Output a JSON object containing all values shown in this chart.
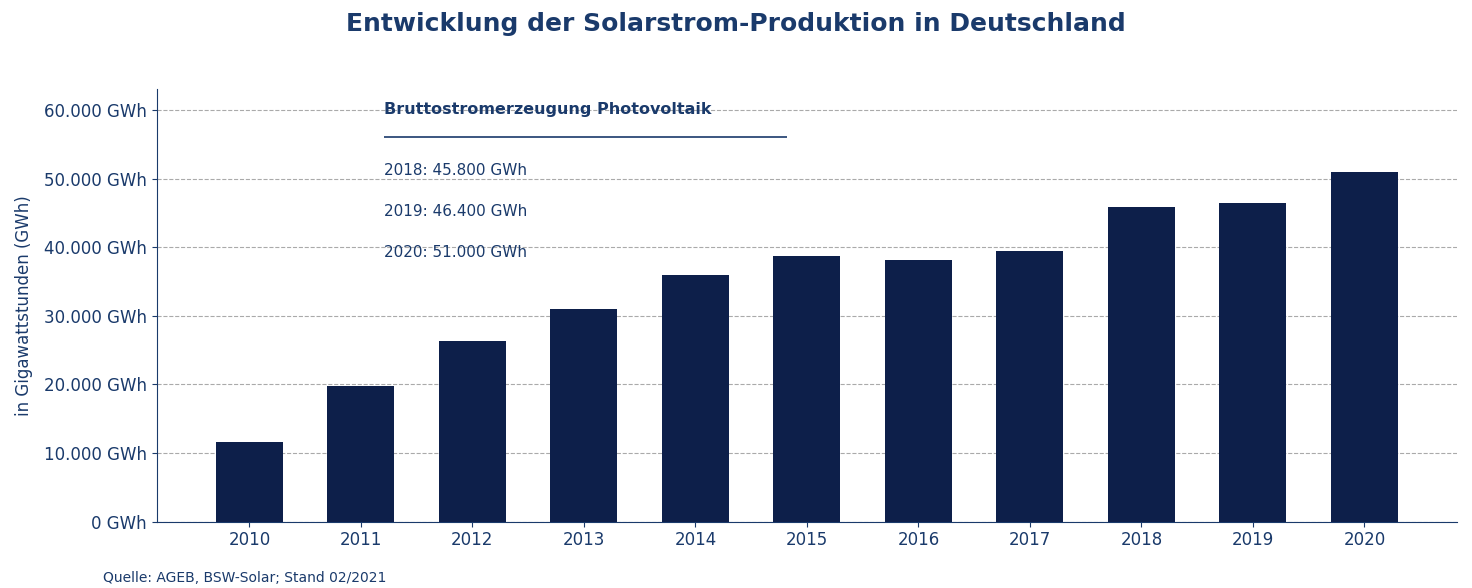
{
  "title": "Entwicklung der Solarstrom-Produktion in Deutschland",
  "ylabel": "in Gigawattstunden (GWh)",
  "years": [
    2010,
    2011,
    2012,
    2013,
    2014,
    2015,
    2016,
    2017,
    2018,
    2019,
    2020
  ],
  "values": [
    11600,
    19800,
    26400,
    31000,
    36000,
    38700,
    38100,
    39400,
    45800,
    46400,
    51000
  ],
  "bar_color": "#0d1f4a",
  "yticks": [
    0,
    10000,
    20000,
    30000,
    40000,
    50000,
    60000
  ],
  "ytick_labels": [
    "0 GWh",
    "10.000 GWh",
    "20.000 GWh",
    "30.000 GWh",
    "40.000 GWh",
    "50.000 GWh",
    "60.000 GWh"
  ],
  "ylim": [
    0,
    63000
  ],
  "annotation_title": "Bruttostromerzeugung Photovoltaik",
  "annotation_lines": [
    "2018: 45.800 GWh",
    "2019: 46.400 GWh",
    "2020: 51.000 GWh"
  ],
  "source_text": "Quelle: AGEB, BSW-Solar; Stand 02/2021",
  "text_color": "#1a3a6b",
  "grid_color": "#aaaaaa",
  "background_color": "#ffffff"
}
